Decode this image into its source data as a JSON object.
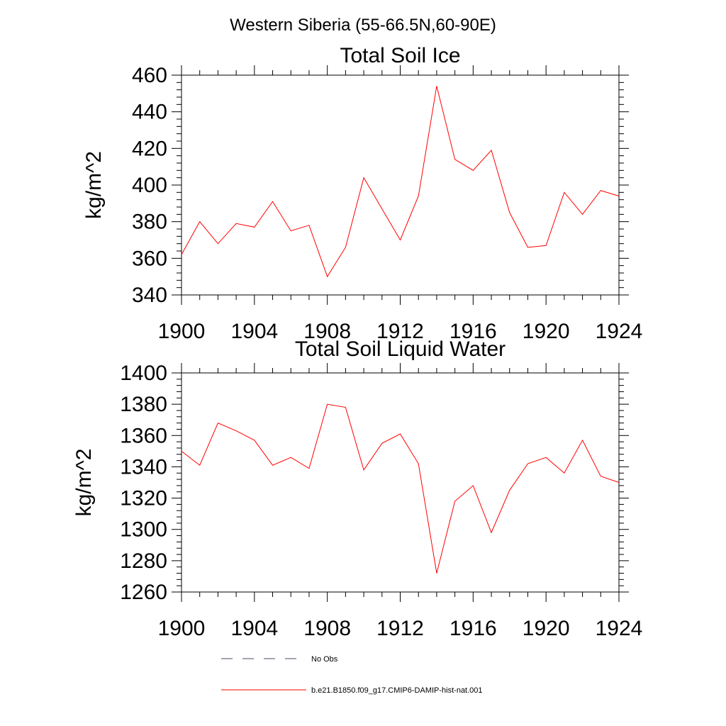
{
  "figure": {
    "title": "Western Siberia (55-66.5N,60-90E)"
  },
  "legend": {
    "items": [
      {
        "label": "No Obs",
        "style": "dashed",
        "color": "#4a4a6a"
      },
      {
        "label": "b.e21.B1850.f09_g17.CMIP6-DAMIP-hist-nat.001",
        "style": "solid",
        "color": "#ff0000"
      }
    ]
  },
  "chart_data": [
    {
      "type": "line",
      "title": "Total Soil Ice",
      "xlabel": "",
      "ylabel": "kg/m^2",
      "xlim": [
        1900,
        1924
      ],
      "ylim": [
        340,
        460
      ],
      "xticks": [
        1900,
        1904,
        1908,
        1912,
        1916,
        1920,
        1924
      ],
      "xtick_labels": [
        "1900",
        "1904",
        "1908",
        "1912",
        "1916",
        "1920",
        "1924"
      ],
      "yticks": [
        340,
        360,
        380,
        400,
        420,
        440,
        460
      ],
      "ytick_labels": [
        "340",
        "360",
        "380",
        "400",
        "420",
        "440",
        "460"
      ],
      "grid": false,
      "x": [
        1900,
        1901,
        1902,
        1903,
        1904,
        1905,
        1906,
        1907,
        1908,
        1909,
        1910,
        1911,
        1912,
        1913,
        1914,
        1915,
        1916,
        1917,
        1918,
        1919,
        1920,
        1921,
        1922,
        1923,
        1924
      ],
      "series": [
        {
          "color": "#ff0000",
          "values": [
            362,
            380,
            368,
            379,
            377,
            391,
            375,
            378,
            350,
            366,
            404,
            387,
            370,
            394,
            454,
            414,
            408,
            419,
            385,
            366,
            367,
            396,
            384,
            397,
            394
          ]
        }
      ]
    },
    {
      "type": "line",
      "title": "Total Soil Liquid Water",
      "xlabel": "",
      "ylabel": "kg/m^2",
      "xlim": [
        1900,
        1924
      ],
      "ylim": [
        1260,
        1400
      ],
      "xticks": [
        1900,
        1904,
        1908,
        1912,
        1916,
        1920,
        1924
      ],
      "xtick_labels": [
        "1900",
        "1904",
        "1908",
        "1912",
        "1916",
        "1920",
        "1924"
      ],
      "yticks": [
        1260,
        1280,
        1300,
        1320,
        1340,
        1360,
        1380,
        1400
      ],
      "ytick_labels": [
        "1260",
        "1280",
        "1300",
        "1320",
        "1340",
        "1360",
        "1380",
        "1400"
      ],
      "grid": false,
      "x": [
        1900,
        1901,
        1902,
        1903,
        1904,
        1905,
        1906,
        1907,
        1908,
        1909,
        1910,
        1911,
        1912,
        1913,
        1914,
        1915,
        1916,
        1917,
        1918,
        1919,
        1920,
        1921,
        1922,
        1923,
        1924
      ],
      "series": [
        {
          "color": "#ff0000",
          "values": [
            1350,
            1341,
            1368,
            1363,
            1357,
            1341,
            1346,
            1339,
            1380,
            1378,
            1338,
            1355,
            1361,
            1342,
            1272,
            1318,
            1328,
            1298,
            1325,
            1342,
            1346,
            1336,
            1357,
            1334,
            1330
          ]
        }
      ]
    }
  ]
}
